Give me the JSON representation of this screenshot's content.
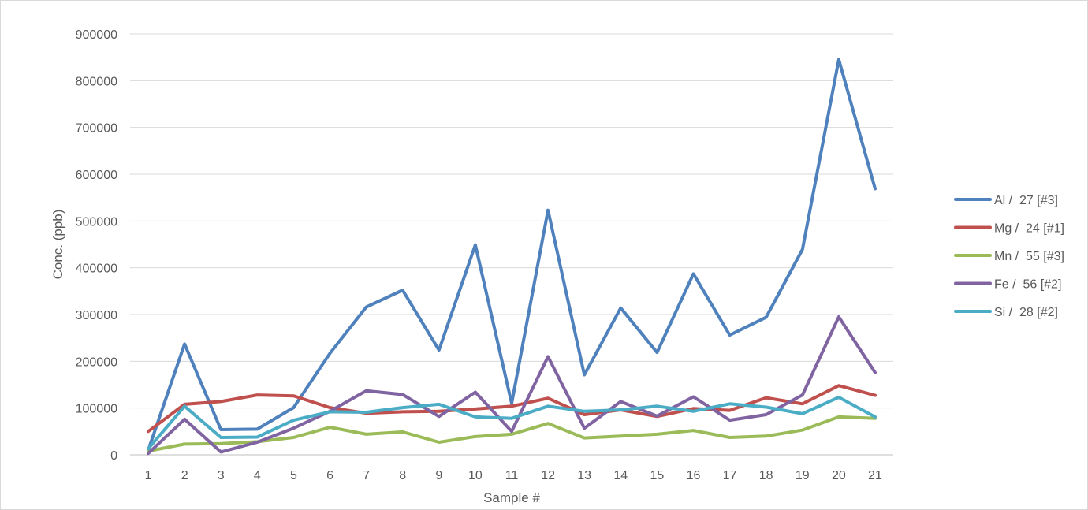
{
  "chart_data": {
    "type": "line",
    "title": "",
    "xlabel": "Sample #",
    "ylabel": "Conc. (ppb)",
    "ylim": [
      0,
      900000
    ],
    "yticks": [
      "0",
      "100000",
      "200000",
      "300000",
      "400000",
      "500000",
      "600000",
      "700000",
      "800000",
      "900000"
    ],
    "categories": [
      "1",
      "2",
      "3",
      "4",
      "5",
      "6",
      "7",
      "8",
      "9",
      "10",
      "11",
      "12",
      "13",
      "14",
      "15",
      "16",
      "17",
      "18",
      "19",
      "20",
      "21"
    ],
    "grid": "horizontal",
    "legend_position": "right",
    "series": [
      {
        "name": "Al /  27 [#3]",
        "color": "#4f81bd",
        "values": [
          10000,
          237000,
          54000,
          55000,
          101000,
          217000,
          316000,
          352000,
          224000,
          449000,
          110000,
          523000,
          171000,
          314000,
          219000,
          387000,
          256000,
          294000,
          439000,
          845000,
          569000
        ]
      },
      {
        "name": "Mg /  24 [#1]",
        "color": "#c0504d",
        "values": [
          50000,
          108000,
          114000,
          128000,
          126000,
          101000,
          89000,
          92000,
          93000,
          98000,
          104000,
          121000,
          86000,
          96000,
          82000,
          99000,
          95000,
          122000,
          109000,
          148000,
          127000
        ]
      },
      {
        "name": "Mn /  55 [#3]",
        "color": "#9bbb59",
        "values": [
          8000,
          23000,
          24000,
          28000,
          37000,
          59000,
          44000,
          49000,
          27000,
          39000,
          44000,
          67000,
          36000,
          40000,
          44000,
          52000,
          37000,
          40000,
          53000,
          81000,
          78000
        ]
      },
      {
        "name": "Fe /  56 [#2]",
        "color": "#8064a2",
        "values": [
          3000,
          76000,
          6000,
          27000,
          57000,
          93000,
          137000,
          129000,
          82000,
          134000,
          50000,
          210000,
          57000,
          114000,
          83000,
          124000,
          74000,
          86000,
          128000,
          295000,
          176000
        ]
      },
      {
        "name": "Si /  28 [#2]",
        "color": "#4bacc6",
        "values": [
          13000,
          104000,
          37000,
          38000,
          74000,
          92000,
          91000,
          101000,
          108000,
          81000,
          78000,
          104000,
          93000,
          96000,
          104000,
          93000,
          109000,
          102000,
          88000,
          123000,
          81000
        ]
      }
    ]
  }
}
